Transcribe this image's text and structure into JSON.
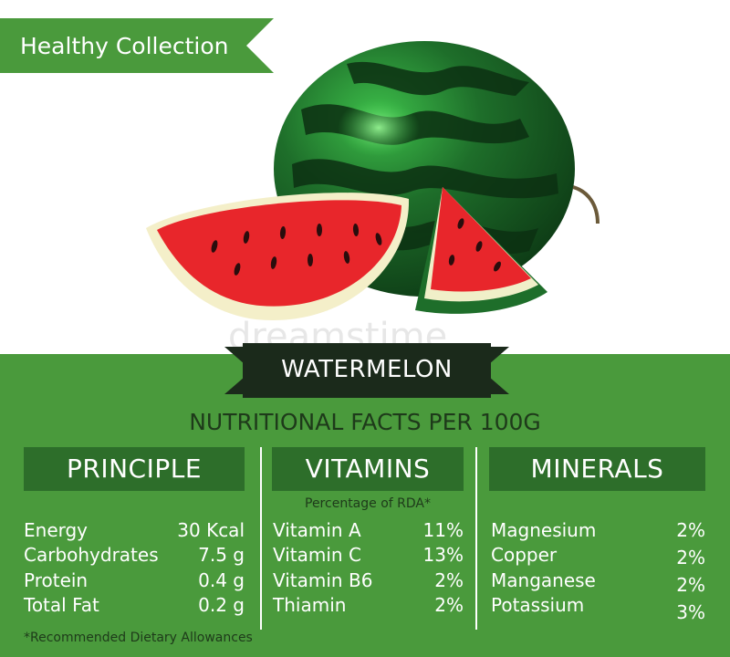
{
  "ribbon": {
    "label": "Healthy Collection"
  },
  "watermark": "dreamstime",
  "banner": {
    "title": "WATERMELON"
  },
  "subtitle": "NUTRITIONAL FACTS PER 100G",
  "columns": {
    "principle": {
      "heading": "PRINCIPLE",
      "items": [
        {
          "name": "Energy",
          "value": "30 Kcal"
        },
        {
          "name": "Carbohydrates",
          "value": "7.5 g"
        },
        {
          "name": "Protein",
          "value": "0.4 g"
        },
        {
          "name": "Total Fat",
          "value": "0.2 g"
        }
      ]
    },
    "vitamins": {
      "heading": "VITAMINS",
      "note": "Percentage of RDA*",
      "items": [
        {
          "name": "Vitamin A",
          "value": "11%"
        },
        {
          "name": "Vitamin C",
          "value": "13%"
        },
        {
          "name": "Vitamin B6",
          "value": "2%"
        },
        {
          "name": "Thiamin",
          "value": "2%"
        }
      ]
    },
    "minerals": {
      "heading": "MINERALS",
      "items": [
        {
          "name": "Magnesium",
          "value": "2%"
        },
        {
          "name": "Copper",
          "value": "2%"
        },
        {
          "name": "Manganese",
          "value": "2%"
        },
        {
          "name": "Potassium",
          "value": "3%"
        }
      ]
    }
  },
  "footnote": "*Recommended Dietary Allowances",
  "colors": {
    "green": "#4a9a3c",
    "dark_green": "#2d6e2a",
    "banner": "#1b2a1b",
    "flesh": "#e8262b"
  }
}
